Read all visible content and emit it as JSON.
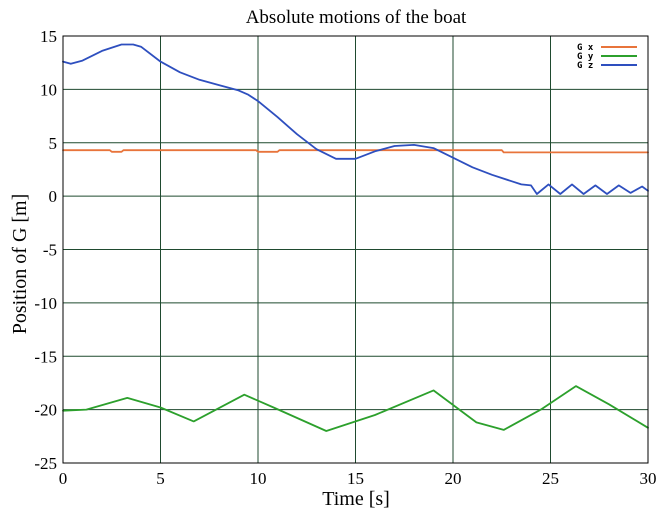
{
  "chart_data": {
    "type": "line",
    "title": "Absolute motions of the boat",
    "xlabel": "Time [s]",
    "ylabel": "Position of G [m]",
    "xlim": [
      0,
      30
    ],
    "ylim": [
      -25,
      15
    ],
    "xticks": [
      "0",
      "5",
      "10",
      "15",
      "20",
      "25",
      "30"
    ],
    "yticks": [
      "15",
      "10",
      "5",
      "0",
      "-5",
      "-10",
      "-15",
      "-20",
      "-25"
    ],
    "grid": true,
    "legend_position": "top-right",
    "series": [
      {
        "name": "G x",
        "color": "#e8743b",
        "x": [
          0,
          2.4,
          2.5,
          3,
          3.1,
          9.9,
          10,
          11,
          11.1,
          22.5,
          22.6,
          30
        ],
        "y": [
          4.3,
          4.3,
          4.15,
          4.15,
          4.3,
          4.3,
          4.15,
          4.15,
          4.3,
          4.3,
          4.1,
          4.1
        ]
      },
      {
        "name": "G y",
        "color": "#2ca02c",
        "x": [
          0,
          1.2,
          3.3,
          5,
          6.7,
          9.3,
          10.8,
          13.5,
          16,
          19,
          21.2,
          22.6,
          24.5,
          26.3,
          28,
          30
        ],
        "y": [
          -20.1,
          -20.0,
          -18.9,
          -19.8,
          -21.1,
          -18.6,
          -19.8,
          -22.0,
          -20.5,
          -18.2,
          -21.2,
          -21.9,
          -20.0,
          -17.8,
          -19.5,
          -21.7
        ]
      },
      {
        "name": "G z",
        "color": "#2e4fbf",
        "x": [
          0,
          0.4,
          1,
          2,
          3,
          3.6,
          4,
          5,
          6,
          7,
          8,
          9,
          9.5,
          10,
          11,
          12,
          13,
          14,
          15,
          16,
          17,
          18,
          19,
          20,
          21,
          22,
          23,
          23.5,
          24,
          24.3,
          24.9,
          25.5,
          26.1,
          26.7,
          27.3,
          27.9,
          28.5,
          29.1,
          29.7,
          30
        ],
        "y": [
          12.6,
          12.4,
          12.7,
          13.6,
          14.2,
          14.2,
          14.0,
          12.6,
          11.6,
          10.9,
          10.4,
          9.9,
          9.5,
          8.9,
          7.4,
          5.8,
          4.4,
          3.5,
          3.5,
          4.2,
          4.7,
          4.8,
          4.5,
          3.6,
          2.7,
          2.0,
          1.4,
          1.1,
          1.0,
          0.2,
          1.1,
          0.2,
          1.1,
          0.2,
          1.0,
          0.2,
          1.0,
          0.3,
          0.9,
          0.5
        ]
      }
    ]
  }
}
